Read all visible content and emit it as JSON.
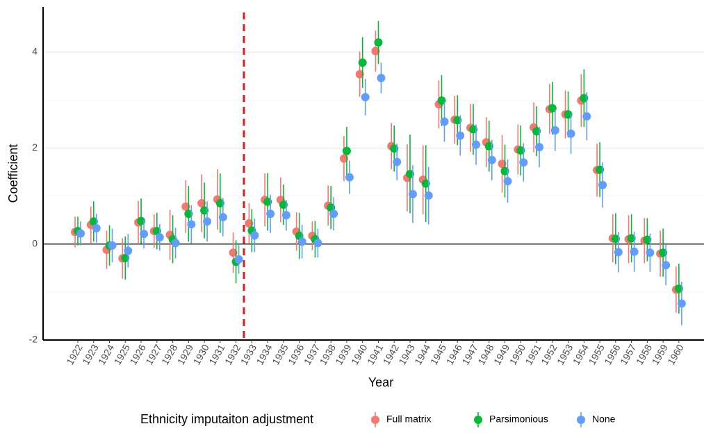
{
  "chart_data": {
    "type": "errorbar",
    "x_label": "Year",
    "y_label": "Coefficient",
    "legend_title": "Ethnicity imputaiton adjustment",
    "legend_position": "bottom",
    "categories": [
      "1922",
      "1923",
      "1924",
      "1925",
      "1926",
      "1927",
      "1928",
      "1929",
      "1930",
      "1931",
      "1932",
      "1933",
      "1934",
      "1935",
      "1936",
      "1937",
      "1938",
      "1939",
      "1940",
      "1941",
      "1942",
      "1943",
      "1944",
      "1945",
      "1946",
      "1947",
      "1948",
      "1949",
      "1950",
      "1951",
      "1952",
      "1953",
      "1954",
      "1955",
      "1956",
      "1957",
      "1958",
      "1959",
      "1960"
    ],
    "ylim": [
      -2,
      4.94
    ],
    "yticks": [
      -2,
      0,
      2,
      4
    ],
    "grid": true,
    "hline": 0,
    "vline_between": [
      "1932",
      "1933"
    ],
    "vline_color": "#e31a1c",
    "series": [
      {
        "name": "Full matrix",
        "color": "#F8766D",
        "values": [
          0.25,
          0.4,
          -0.12,
          -0.3,
          0.45,
          0.27,
          0.19,
          0.78,
          0.85,
          0.93,
          -0.18,
          0.43,
          0.92,
          0.92,
          0.26,
          0.17,
          0.8,
          1.78,
          3.54,
          4.02,
          2.04,
          1.38,
          1.34,
          2.91,
          2.59,
          2.42,
          2.12,
          1.67,
          1.97,
          2.43,
          2.81,
          2.7,
          2.99,
          1.54,
          0.12,
          0.1,
          0.07,
          -0.2,
          -0.95
        ],
        "errors": [
          0.32,
          0.38,
          0.4,
          0.42,
          0.45,
          0.35,
          0.52,
          0.55,
          0.6,
          0.63,
          0.42,
          0.42,
          0.55,
          0.47,
          0.4,
          0.3,
          0.42,
          0.47,
          0.47,
          0.43,
          0.48,
          0.7,
          0.72,
          0.5,
          0.5,
          0.5,
          0.52,
          0.6,
          0.52,
          0.52,
          0.52,
          0.5,
          0.55,
          0.55,
          0.5,
          0.5,
          0.47,
          0.48,
          0.48
        ]
      },
      {
        "name": "Parsimonious",
        "color": "#00BA38",
        "values": [
          0.27,
          0.47,
          -0.03,
          -0.29,
          0.48,
          0.27,
          0.1,
          0.63,
          0.7,
          0.85,
          -0.37,
          0.28,
          0.88,
          0.82,
          0.17,
          0.1,
          0.76,
          1.94,
          3.78,
          4.2,
          1.99,
          1.46,
          1.26,
          2.99,
          2.58,
          2.39,
          2.04,
          1.52,
          1.95,
          2.35,
          2.83,
          2.7,
          3.04,
          1.55,
          0.11,
          0.12,
          0.09,
          -0.18,
          -0.93
        ],
        "errors": [
          0.3,
          0.42,
          0.42,
          0.45,
          0.47,
          0.38,
          0.5,
          0.58,
          0.58,
          0.62,
          0.45,
          0.45,
          0.6,
          0.42,
          0.48,
          0.38,
          0.45,
          0.5,
          0.53,
          0.45,
          0.48,
          0.82,
          0.8,
          0.53,
          0.52,
          0.53,
          0.53,
          0.55,
          0.52,
          0.52,
          0.55,
          0.48,
          0.6,
          0.57,
          0.53,
          0.5,
          0.45,
          0.5,
          0.52
        ]
      },
      {
        "name": "None",
        "color": "#619CFF",
        "values": [
          0.22,
          0.33,
          -0.03,
          -0.14,
          0.21,
          0.14,
          0.02,
          0.41,
          0.47,
          0.56,
          -0.32,
          0.18,
          0.63,
          0.6,
          0.05,
          0.02,
          0.63,
          1.39,
          3.06,
          3.46,
          1.71,
          1.04,
          1.01,
          2.55,
          2.26,
          2.07,
          1.75,
          1.31,
          1.7,
          2.02,
          2.37,
          2.3,
          2.66,
          1.23,
          -0.17,
          -0.16,
          -0.18,
          -0.44,
          -1.24
        ],
        "errors": [
          0.25,
          0.3,
          0.35,
          0.35,
          0.3,
          0.28,
          0.32,
          0.4,
          0.42,
          0.4,
          0.3,
          0.35,
          0.4,
          0.32,
          0.35,
          0.3,
          0.35,
          0.35,
          0.38,
          0.32,
          0.38,
          0.6,
          0.6,
          0.42,
          0.42,
          0.42,
          0.42,
          0.45,
          0.4,
          0.42,
          0.43,
          0.42,
          0.5,
          0.47,
          0.42,
          0.42,
          0.4,
          0.42,
          0.45
        ]
      }
    ]
  }
}
